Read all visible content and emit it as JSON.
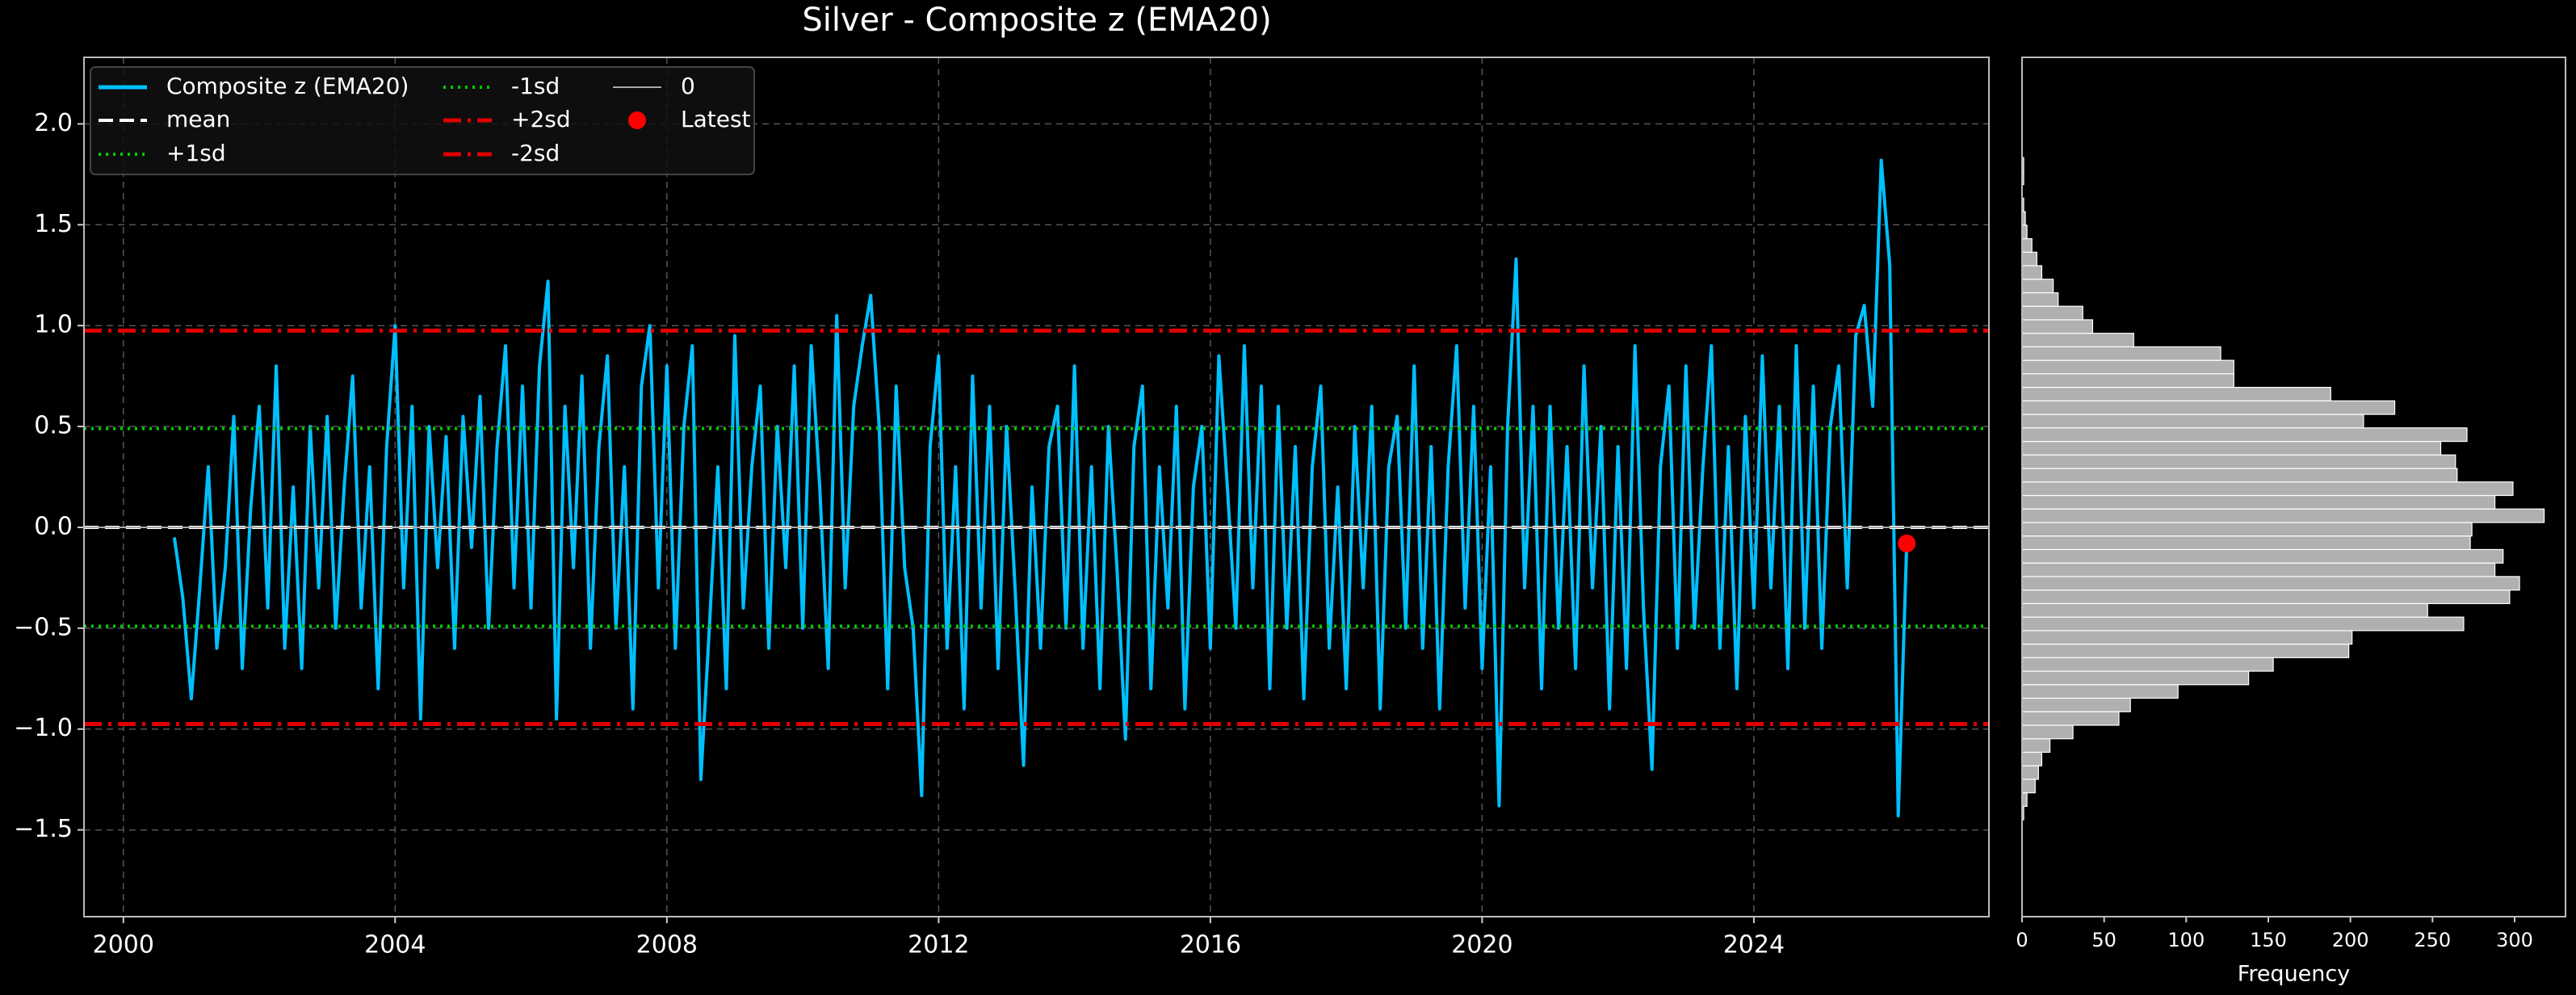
{
  "chart_data": [
    {
      "type": "line",
      "title": "Silver - Composite z (EMA20)",
      "xlim": [
        1999.42,
        2027.46
      ],
      "ylim": [
        -1.93,
        2.33
      ],
      "xticks": [
        2000,
        2004,
        2008,
        2012,
        2016,
        2020,
        2024
      ],
      "yticks": [
        {
          "value": -1.5,
          "label": "−1.5"
        },
        {
          "value": -1.0,
          "label": "−1.0"
        },
        {
          "value": -0.5,
          "label": "−0.5"
        },
        {
          "value": 0.0,
          "label": "0.0"
        },
        0.5,
        {
          "value": 1.0,
          "label": "1.0"
        },
        1.5,
        {
          "value": 2.0,
          "label": "2.0"
        }
      ],
      "grid": true,
      "legend": "upper left",
      "series": [
        {
          "name": "Composite z (EMA20)",
          "color": "#00bfff",
          "x": [
            2000.75,
            2000.875,
            2001,
            2001.125,
            2001.25,
            2001.375,
            2001.5,
            2001.625,
            2001.75,
            2001.875,
            2002,
            2002.125,
            2002.25,
            2002.375,
            2002.5,
            2002.625,
            2002.75,
            2002.875,
            2003,
            2003.125,
            2003.25,
            2003.375,
            2003.5,
            2003.625,
            2003.75,
            2003.875,
            2004,
            2004.125,
            2004.25,
            2004.375,
            2004.5,
            2004.625,
            2004.75,
            2004.875,
            2005,
            2005.125,
            2005.25,
            2005.375,
            2005.5,
            2005.625,
            2005.75,
            2005.875,
            2006,
            2006.125,
            2006.25,
            2006.375,
            2006.5,
            2006.625,
            2006.75,
            2006.875,
            2007,
            2007.125,
            2007.25,
            2007.375,
            2007.5,
            2007.625,
            2007.75,
            2007.875,
            2008,
            2008.125,
            2008.25,
            2008.375,
            2008.5,
            2008.625,
            2008.75,
            2008.875,
            2009,
            2009.125,
            2009.25,
            2009.375,
            2009.5,
            2009.625,
            2009.75,
            2009.875,
            2010,
            2010.125,
            2010.25,
            2010.375,
            2010.5,
            2010.625,
            2010.75,
            2010.875,
            2011,
            2011.125,
            2011.25,
            2011.375,
            2011.5,
            2011.625,
            2011.75,
            2011.875,
            2012,
            2012.125,
            2012.25,
            2012.375,
            2012.5,
            2012.625,
            2012.75,
            2012.875,
            2013,
            2013.125,
            2013.25,
            2013.375,
            2013.5,
            2013.625,
            2013.75,
            2013.875,
            2014,
            2014.125,
            2014.25,
            2014.375,
            2014.5,
            2014.625,
            2014.75,
            2014.875,
            2015,
            2015.125,
            2015.25,
            2015.375,
            2015.5,
            2015.625,
            2015.75,
            2015.875,
            2016,
            2016.125,
            2016.25,
            2016.375,
            2016.5,
            2016.625,
            2016.75,
            2016.875,
            2017,
            2017.125,
            2017.25,
            2017.375,
            2017.5,
            2017.625,
            2017.75,
            2017.875,
            2018,
            2018.125,
            2018.25,
            2018.375,
            2018.5,
            2018.625,
            2018.75,
            2018.875,
            2019,
            2019.125,
            2019.25,
            2019.375,
            2019.5,
            2019.625,
            2019.75,
            2019.875,
            2020,
            2020.125,
            2020.25,
            2020.375,
            2020.5,
            2020.625,
            2020.75,
            2020.875,
            2021,
            2021.125,
            2021.25,
            2021.375,
            2021.5,
            2021.625,
            2021.75,
            2021.875,
            2022,
            2022.125,
            2022.25,
            2022.375,
            2022.5,
            2022.625,
            2022.75,
            2022.875,
            2023,
            2023.125,
            2023.25,
            2023.375,
            2023.5,
            2023.625,
            2023.75,
            2023.875,
            2024,
            2024.125,
            2024.25,
            2024.375,
            2024.5,
            2024.625,
            2024.75,
            2024.875,
            2025,
            2025.125,
            2025.25,
            2025.375,
            2025.5,
            2025.625,
            2025.75,
            2025.875,
            2026,
            2026.125,
            2026.25
          ],
          "values": [
            -0.05,
            -0.35,
            -0.85,
            -0.3,
            0.3,
            -0.6,
            -0.2,
            0.55,
            -0.7,
            0.1,
            0.6,
            -0.4,
            0.8,
            -0.6,
            0.2,
            -0.7,
            0.5,
            -0.3,
            0.55,
            -0.5,
            0.2,
            0.75,
            -0.4,
            0.3,
            -0.8,
            0.4,
            1.0,
            -0.3,
            0.6,
            -0.95,
            0.5,
            -0.2,
            0.45,
            -0.6,
            0.55,
            -0.1,
            0.65,
            -0.5,
            0.4,
            0.9,
            -0.3,
            0.7,
            -0.4,
            0.8,
            1.22,
            -0.95,
            0.6,
            -0.2,
            0.75,
            -0.6,
            0.4,
            0.85,
            -0.5,
            0.3,
            -0.9,
            0.7,
            1.0,
            -0.3,
            0.8,
            -0.6,
            0.5,
            0.9,
            -1.25,
            -0.5,
            0.3,
            -0.8,
            0.95,
            -0.4,
            0.3,
            0.7,
            -0.6,
            0.5,
            -0.2,
            0.8,
            -0.5,
            0.9,
            0.2,
            -0.7,
            1.05,
            -0.3,
            0.6,
            0.9,
            1.15,
            0.5,
            -0.8,
            0.7,
            -0.2,
            -0.5,
            -1.33,
            0.4,
            0.85,
            -0.6,
            0.3,
            -0.9,
            0.75,
            -0.4,
            0.6,
            -0.7,
            0.5,
            -0.3,
            -1.18,
            0.2,
            -0.6,
            0.4,
            0.6,
            -0.5,
            0.8,
            -0.6,
            0.3,
            -0.8,
            0.5,
            -0.2,
            -1.05,
            0.4,
            0.7,
            -0.8,
            0.3,
            -0.4,
            0.6,
            -0.9,
            0.2,
            0.5,
            -0.6,
            0.85,
            0.2,
            -0.5,
            0.9,
            -0.3,
            0.7,
            -0.8,
            0.6,
            -0.5,
            0.4,
            -0.85,
            0.3,
            0.7,
            -0.6,
            0.2,
            -0.8,
            0.5,
            -0.3,
            0.6,
            -0.9,
            0.3,
            0.55,
            -0.5,
            0.8,
            -0.6,
            0.4,
            -0.9,
            0.3,
            0.9,
            -0.4,
            0.6,
            -0.7,
            0.3,
            -1.38,
            0.5,
            1.33,
            -0.3,
            0.6,
            -0.8,
            0.6,
            -0.5,
            0.4,
            -0.7,
            0.8,
            -0.3,
            0.5,
            -0.9,
            0.4,
            -0.7,
            0.9,
            -0.4,
            -1.2,
            0.3,
            0.7,
            -0.6,
            0.8,
            -0.5,
            0.3,
            0.9,
            -0.6,
            0.4,
            -0.8,
            0.55,
            -0.4,
            0.85,
            -0.3,
            0.6,
            -0.7,
            0.9,
            -0.5,
            0.7,
            -0.6,
            0.5,
            0.8,
            -0.3,
            0.95,
            1.1,
            0.6,
            1.82,
            1.3,
            -1.43,
            -0.08
          ]
        }
      ],
      "hlines": [
        {
          "name": "mean",
          "value": 0.0,
          "color": "#ffffff",
          "style": "dashed"
        },
        {
          "name": "+1sd",
          "value": 0.49,
          "color": "#00cc00",
          "style": "dotted"
        },
        {
          "name": "-1sd",
          "value": -0.49,
          "color": "#00cc00",
          "style": "dotted"
        },
        {
          "name": "+2sd",
          "value": 0.975,
          "color": "#e00000",
          "style": "dashdot"
        },
        {
          "name": "-2sd",
          "value": -0.975,
          "color": "#e00000",
          "style": "dashdot"
        },
        {
          "name": "0",
          "value": 0,
          "color": "#aaaaaa",
          "style": "solid"
        }
      ],
      "latest": {
        "name": "Latest",
        "x": 2026.25,
        "y": -0.08,
        "color": "#ff0000"
      }
    },
    {
      "type": "histogram",
      "orientation": "horizontal",
      "xlabel": "Frequency",
      "color": "#b0b0b0",
      "xlim": [
        0,
        331
      ],
      "ylim": [
        -1.93,
        2.33
      ],
      "xticks": [
        0,
        50,
        100,
        150,
        200,
        250,
        300
      ],
      "bins": [
        -1.45,
        -1.383,
        -1.316,
        -1.249,
        -1.182,
        -1.115,
        -1.048,
        -0.981,
        -0.914,
        -0.847,
        -0.78,
        -0.713,
        -0.646,
        -0.579,
        -0.512,
        -0.445,
        -0.378,
        -0.311,
        -0.244,
        -0.177,
        -0.11,
        -0.043,
        0.024,
        0.091,
        0.158,
        0.225,
        0.292,
        0.359,
        0.426,
        0.493,
        0.56,
        0.627,
        0.694,
        0.761,
        0.828,
        0.895,
        0.962,
        1.029,
        1.096,
        1.163,
        1.23,
        1.297,
        1.364,
        1.431,
        1.498,
        1.565,
        1.632,
        1.699,
        1.766,
        1.833
      ],
      "values": [
        1,
        3,
        8,
        10,
        12,
        17,
        31,
        59,
        66,
        95,
        138,
        153,
        199,
        201,
        269,
        247,
        297,
        303,
        288,
        293,
        273,
        274,
        318,
        288,
        299,
        265,
        264,
        255,
        271,
        208,
        227,
        188,
        129,
        129,
        121,
        68,
        43,
        37,
        22,
        19,
        12,
        9,
        6,
        3,
        2,
        1,
        0,
        1,
        1
      ]
    }
  ]
}
